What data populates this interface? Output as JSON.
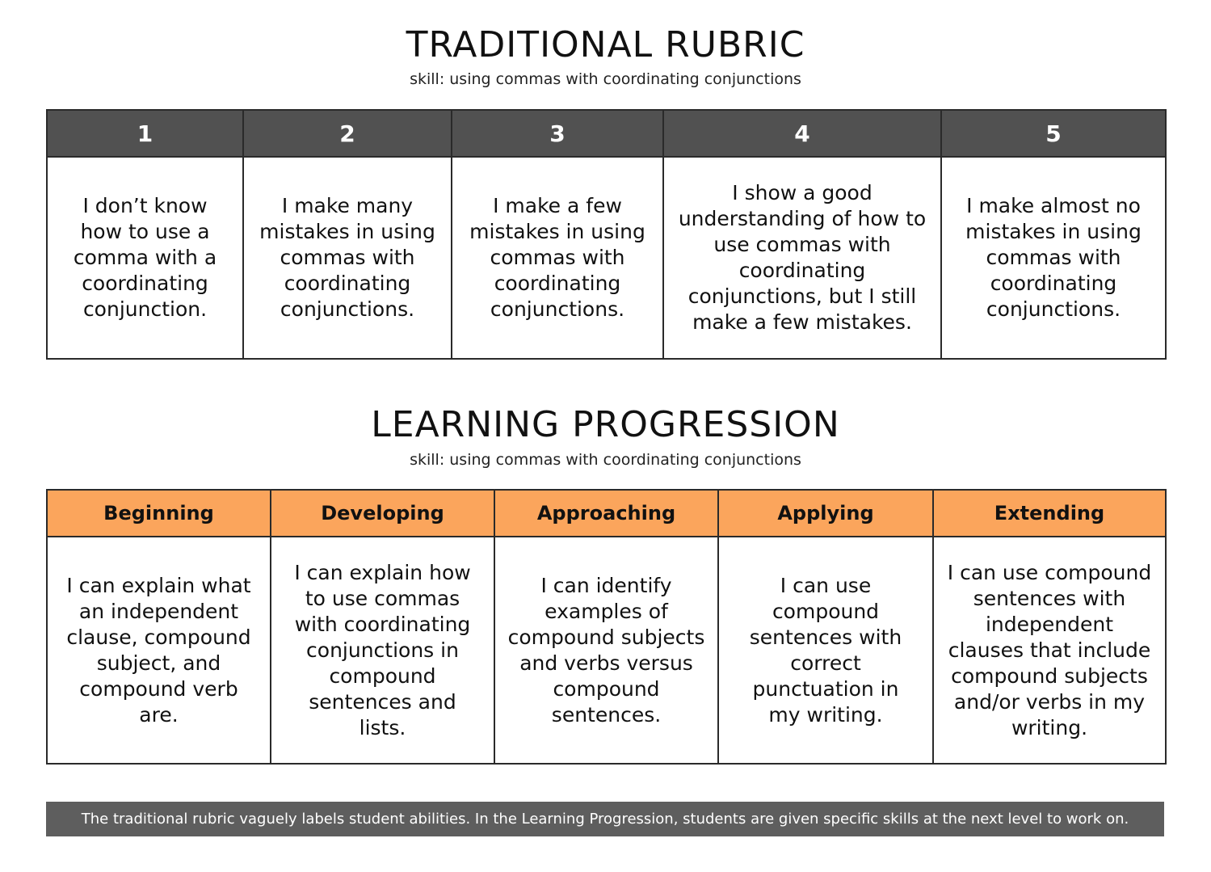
{
  "traditional": {
    "title": "TRADITIONAL RUBRIC",
    "subtitle": "skill: using commas with coordinating conjunctions",
    "headers": [
      "1",
      "2",
      "3",
      "4",
      "5"
    ],
    "cells": [
      "I don’t know how to use a comma with a coordinating conjunction.",
      "I make many mistakes in using commas with coordinating conjunctions.",
      "I make a few mistakes in using commas with coordinating conjunctions.",
      "I show a good understanding of how to use commas with coordinating conjunctions, but I still make a few mistakes.",
      "I make almost no mistakes in using commas with coordinating conjunctions."
    ]
  },
  "progression": {
    "title": "LEARNING PROGRESSION",
    "subtitle": "skill: using commas with coordinating conjunctions",
    "headers": [
      "Beginning",
      "Developing",
      "Approaching",
      "Applying",
      "Extending"
    ],
    "cells": [
      "I can explain what an independent clause, compound subject, and compound verb are.",
      "I can explain how to use commas with coordinating conjunctions in compound sentences and lists.",
      "I can identify examples of compound subjects and verbs versus compound sentences.",
      "I can use compound sentences with correct punctuation in my writing.",
      "I can use compound sentences with independent clauses that include compound subjects and/or verbs in my writing."
    ]
  },
  "footer": {
    "text": "The traditional rubric vaguely labels student abilities. In the Learning Progression, students are given specific skills at the next level to work on."
  },
  "colors": {
    "traditional_header": "#515151",
    "progression_header": "#fba55c",
    "footer_bg": "#5e5e5e"
  }
}
